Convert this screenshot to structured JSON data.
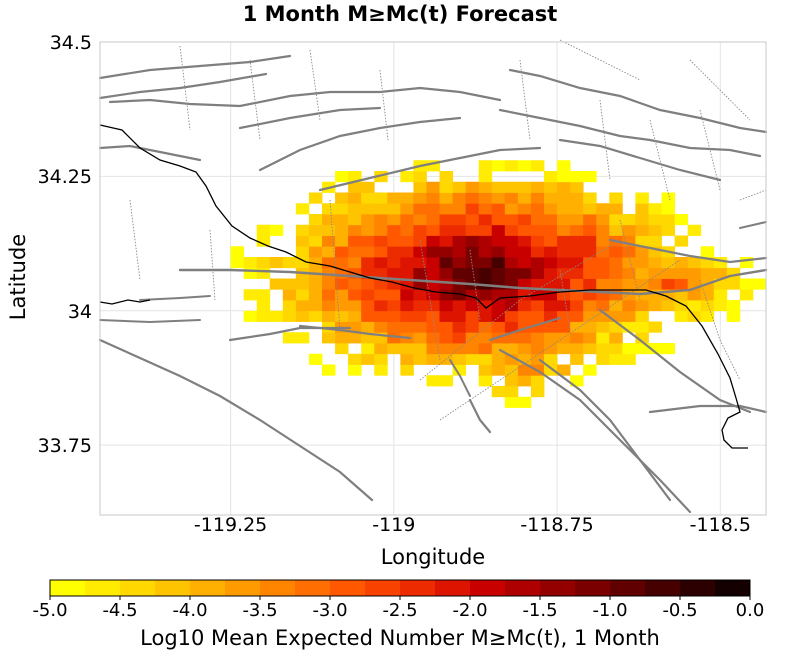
{
  "chart_data": {
    "type": "heatmap",
    "title": "1 Month M≥Mc(t) Forecast",
    "xlabel": "Longitude",
    "ylabel": "Latitude",
    "xlim": [
      -119.45,
      -118.43
    ],
    "ylim": [
      33.62,
      34.5
    ],
    "x_ticks": [
      "-119.25",
      "-119",
      "-118.75",
      "-118.5"
    ],
    "x_tick_values": [
      -119.25,
      -119.0,
      -118.75,
      -118.5
    ],
    "y_ticks": [
      "34.5",
      "34.25",
      "34",
      "33.75"
    ],
    "y_tick_values": [
      34.5,
      34.25,
      34.0,
      33.75
    ],
    "grid": true,
    "cell_size_deg": 0.02,
    "peak": {
      "lon": -118.87,
      "lat": 34.07,
      "value": -0.5
    },
    "secondary_centers": [
      {
        "lon": -118.71,
        "lat": 34.13,
        "value": -2.6
      },
      {
        "lon": -118.58,
        "lat": 34.05,
        "value": -3.0
      },
      {
        "lon": -118.8,
        "lat": 33.9,
        "value": -3.4
      },
      {
        "lon": -119.05,
        "lat": 34.2,
        "value": -3.6
      }
    ],
    "value_range": [
      -5.0,
      0.0
    ],
    "colorbar": {
      "label": "Log10 Mean Expected Number M≥Mc(t), 1 Month",
      "ticks": [
        "-5.0",
        "-4.5",
        "-4.0",
        "-3.5",
        "-3.0",
        "-2.5",
        "-2.0",
        "-1.5",
        "-1.0",
        "-0.5",
        "0.0"
      ],
      "colors": [
        "#ffff00",
        "#ffec00",
        "#ffd800",
        "#ffc400",
        "#ffb000",
        "#ff9a00",
        "#ff8400",
        "#ff6e00",
        "#ff5800",
        "#f84200",
        "#ec2c00",
        "#dc1400",
        "#c80000",
        "#ae0000",
        "#940000",
        "#7a0000",
        "#600000",
        "#460000",
        "#2c0000",
        "#140000"
      ]
    },
    "overlays": [
      "fault traces",
      "coastline"
    ]
  }
}
